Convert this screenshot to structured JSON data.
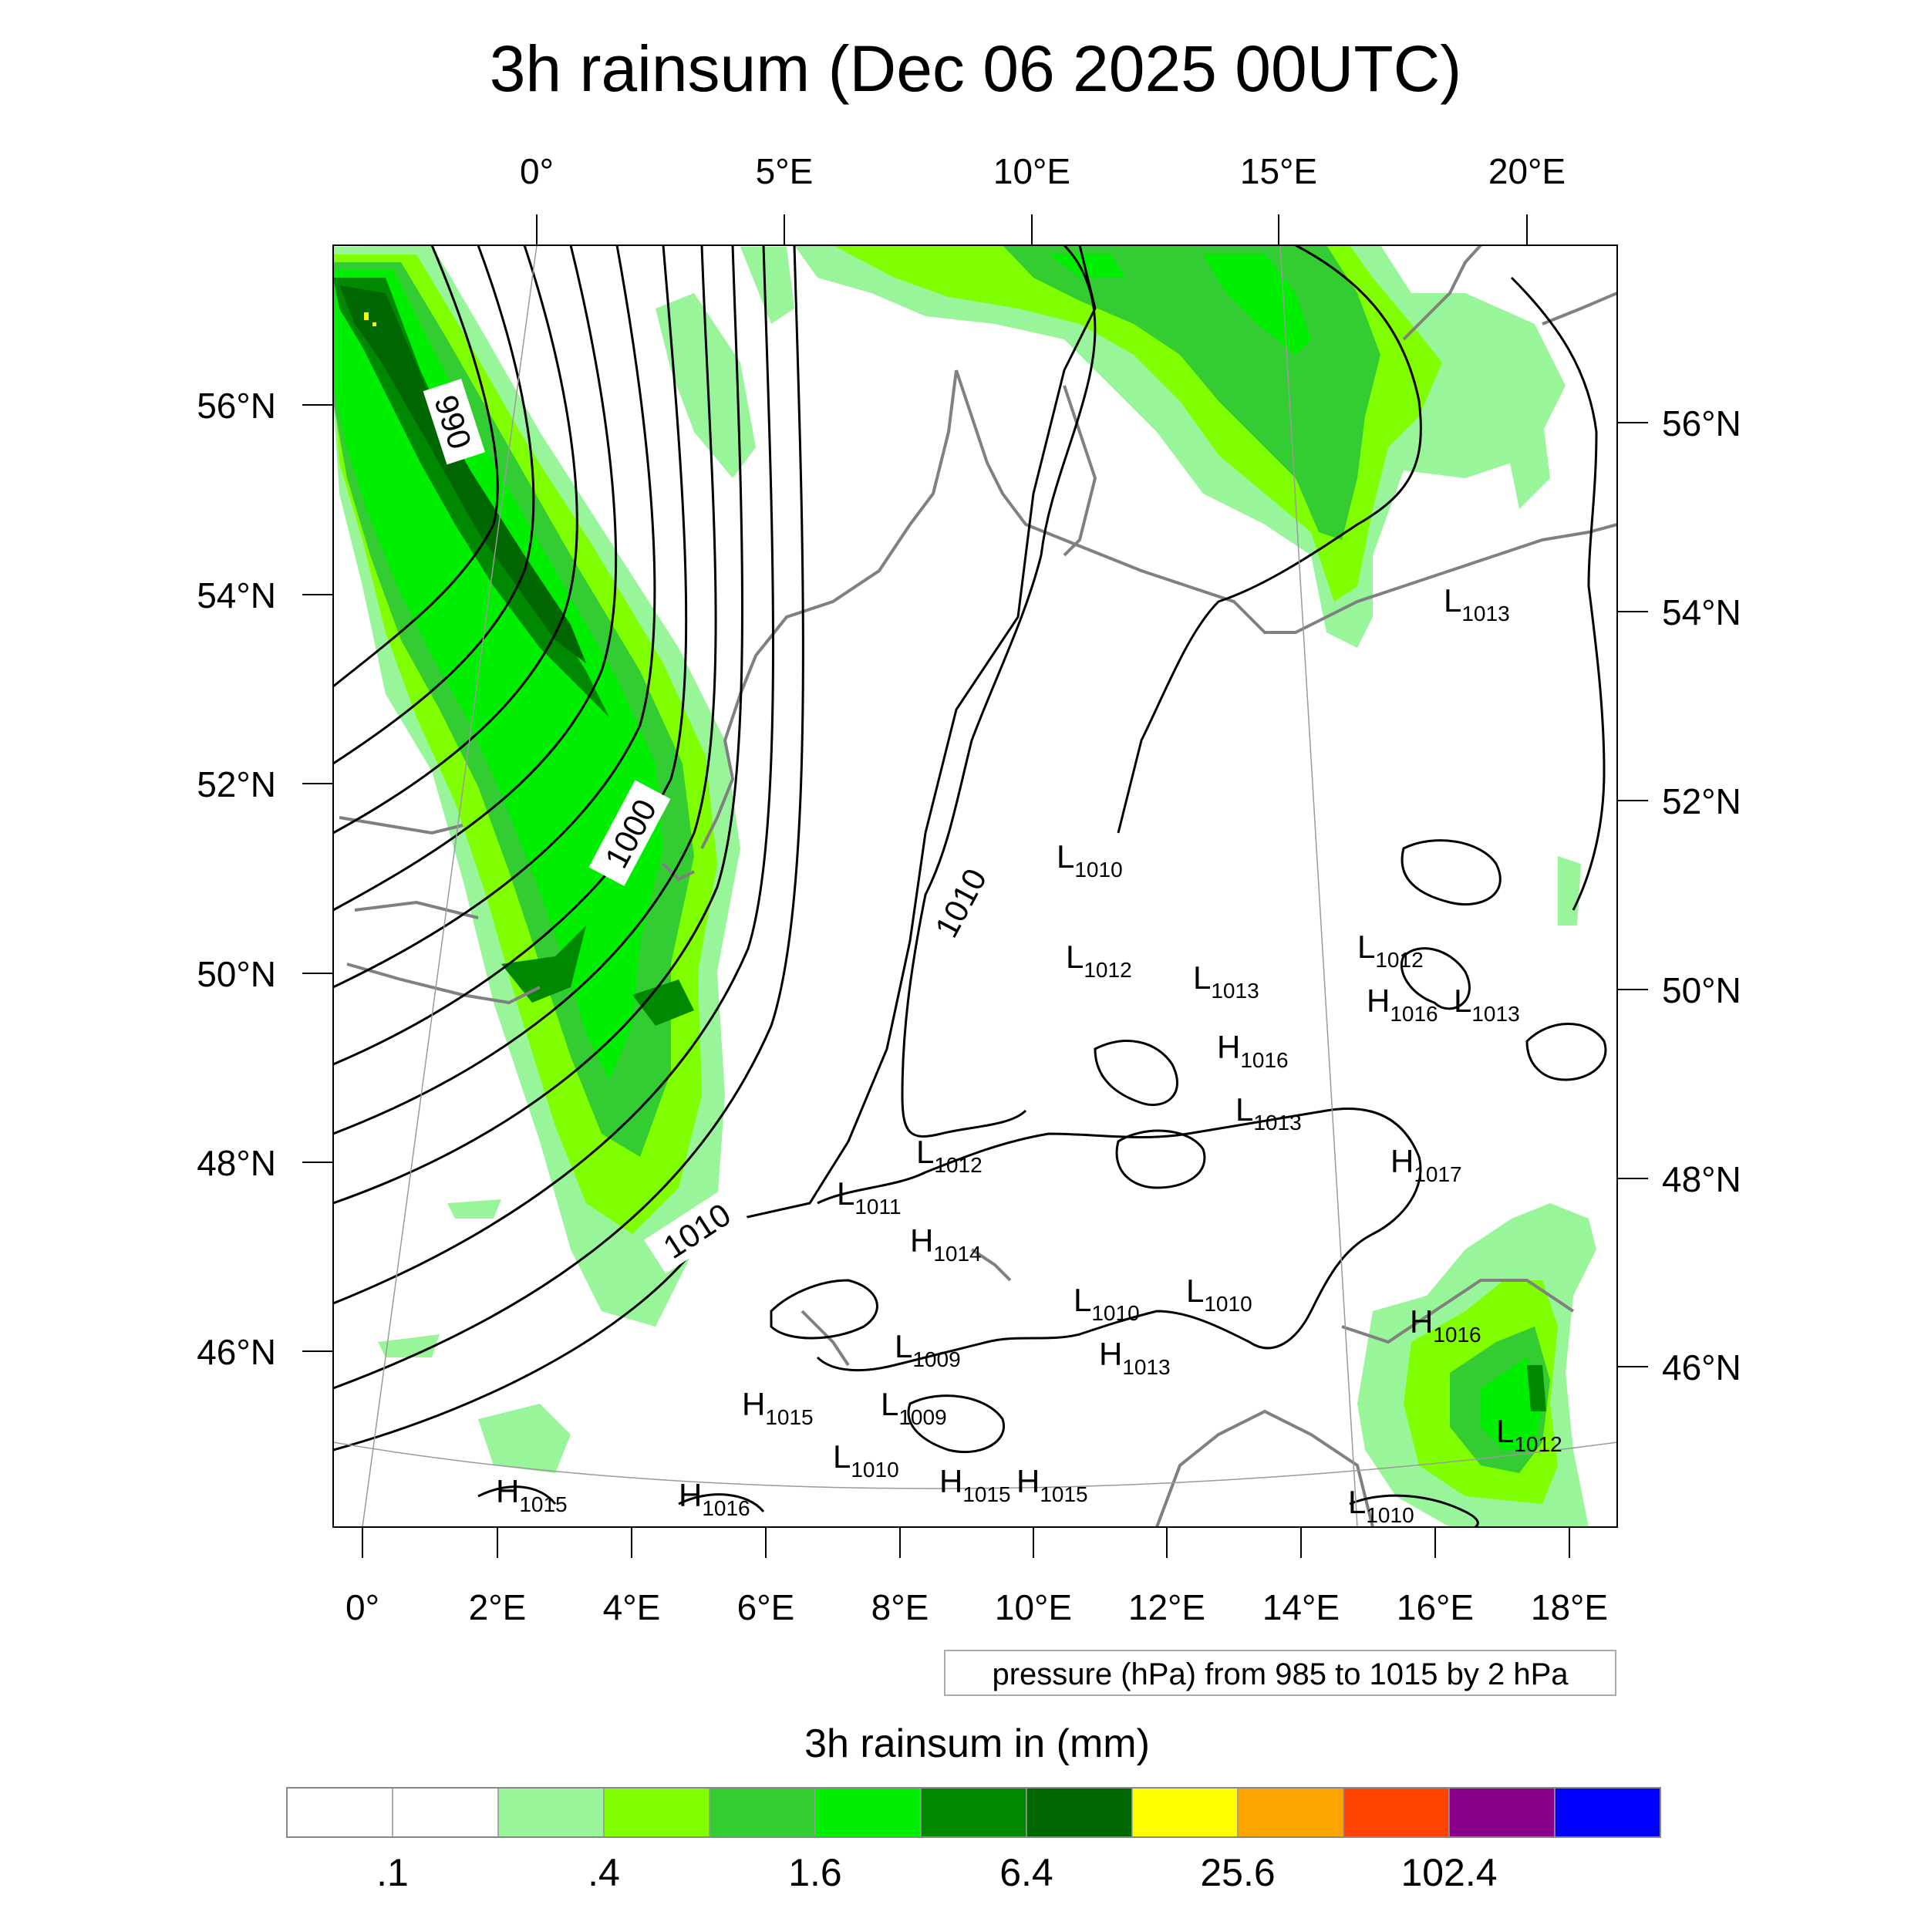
{
  "title": "3h rainsum (Dec 06 2025 00UTC)",
  "top_lon_labels": [
    "0°",
    "5°E",
    "10°E",
    "15°E",
    "20°E"
  ],
  "bottom_lon_labels": [
    "0°",
    "2°E",
    "4°E",
    "6°E",
    "8°E",
    "10°E",
    "12°E",
    "14°E",
    "16°E",
    "18°E"
  ],
  "left_lat_labels": [
    "56°N",
    "54°N",
    "52°N",
    "50°N",
    "48°N",
    "46°N"
  ],
  "right_lat_labels": [
    "56°N",
    "54°N",
    "52°N",
    "50°N",
    "48°N",
    "46°N"
  ],
  "isobar_labels": [
    "990",
    "1000",
    "1010",
    "1010"
  ],
  "pressure_centers": [
    {
      "type": "L",
      "value": "1013"
    },
    {
      "type": "L",
      "value": "1010"
    },
    {
      "type": "L",
      "value": "1012"
    },
    {
      "type": "L",
      "value": "1013"
    },
    {
      "type": "L",
      "value": "1012"
    },
    {
      "type": "H",
      "value": "1016"
    },
    {
      "type": "L",
      "value": "1013"
    },
    {
      "type": "H",
      "value": "1016"
    },
    {
      "type": "L",
      "value": "1013"
    },
    {
      "type": "H",
      "value": "1017"
    },
    {
      "type": "L",
      "value": "1012"
    },
    {
      "type": "L",
      "value": "1011"
    },
    {
      "type": "H",
      "value": "1014"
    },
    {
      "type": "L",
      "value": "1010"
    },
    {
      "type": "L",
      "value": "1010"
    },
    {
      "type": "H",
      "value": "1016"
    },
    {
      "type": "L",
      "value": "1009"
    },
    {
      "type": "H",
      "value": "1013"
    },
    {
      "type": "H",
      "value": "1015"
    },
    {
      "type": "L",
      "value": "1009"
    },
    {
      "type": "L",
      "value": "1012"
    },
    {
      "type": "L",
      "value": "1010"
    },
    {
      "type": "H",
      "value": "1015"
    },
    {
      "type": "H",
      "value": "1015"
    },
    {
      "type": "H",
      "value": "1015"
    },
    {
      "type": "H",
      "value": "1016"
    },
    {
      "type": "L",
      "value": "1010"
    }
  ],
  "pressure_note": "pressure (hPa) from 985 to 1015 by 2 hPa",
  "legend": {
    "title": "3h rainsum in (mm)",
    "colors": [
      "#ffffff",
      "#ffffff",
      "#99f599",
      "#80ff00",
      "#33cc33",
      "#00ee00",
      "#008800",
      "#006600",
      "#ffff00",
      "#ffa500",
      "#ff4500",
      "#8b008b",
      "#0000ff"
    ],
    "labels": [
      ".1",
      ".4",
      "1.6",
      "6.4",
      "25.6",
      "102.4"
    ]
  }
}
